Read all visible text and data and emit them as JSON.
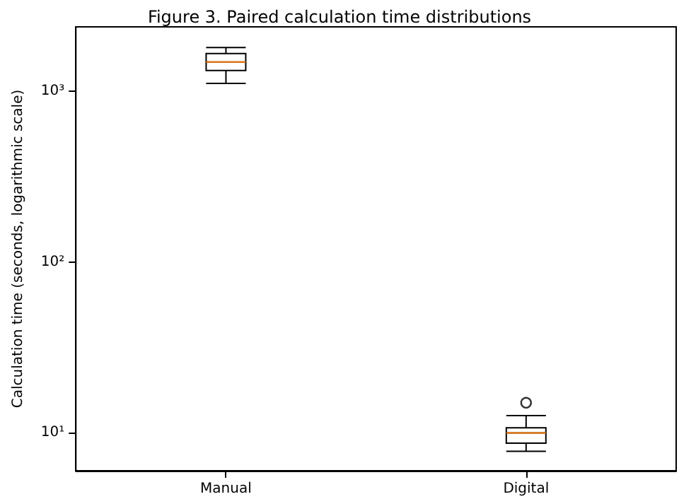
{
  "chart_data": {
    "type": "box",
    "title": "Figure 3. Paired calculation time distributions",
    "ylabel": "Calculation time (seconds, logarithmic scale)",
    "categories": [
      "Manual",
      "Digital"
    ],
    "boxes": [
      {
        "low": 1110,
        "q1": 1320,
        "median": 1480,
        "q3": 1660,
        "high": 1800
      },
      {
        "low": 7.8,
        "q1": 8.7,
        "median": 10,
        "q3": 10.7,
        "high": 12.6,
        "outliers": [
          15
        ]
      }
    ],
    "log": "y",
    "ylim": [
      6,
      2380
    ],
    "yticks": [
      {
        "value": 10,
        "label": "10¹"
      },
      {
        "value": 100,
        "label": "10²"
      },
      {
        "value": 1000,
        "label": "10³"
      }
    ],
    "grid": false,
    "legend": false
  }
}
